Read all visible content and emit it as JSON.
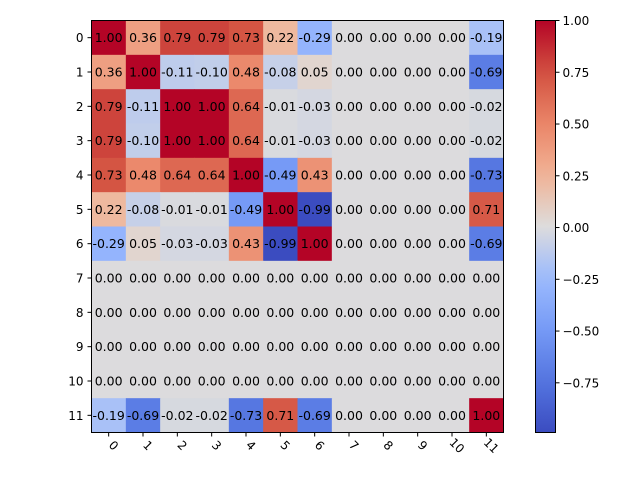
{
  "chart_data": {
    "type": "heatmap",
    "title": "",
    "xlabel": "",
    "ylabel": "",
    "x_categories": [
      "0",
      "1",
      "2",
      "3",
      "4",
      "5",
      "6",
      "7",
      "8",
      "9",
      "10",
      "11"
    ],
    "y_categories": [
      "0",
      "1",
      "2",
      "3",
      "4",
      "5",
      "6",
      "7",
      "8",
      "9",
      "10",
      "11"
    ],
    "values": [
      [
        1.0,
        0.36,
        0.79,
        0.79,
        0.73,
        0.22,
        -0.29,
        0.0,
        0.0,
        0.0,
        0.0,
        -0.19
      ],
      [
        0.36,
        1.0,
        -0.11,
        -0.1,
        0.48,
        -0.08,
        0.05,
        0.0,
        0.0,
        0.0,
        0.0,
        -0.69
      ],
      [
        0.79,
        -0.11,
        1.0,
        1.0,
        0.64,
        -0.01,
        -0.03,
        0.0,
        0.0,
        0.0,
        0.0,
        -0.02
      ],
      [
        0.79,
        -0.1,
        1.0,
        1.0,
        0.64,
        -0.01,
        -0.03,
        0.0,
        0.0,
        0.0,
        0.0,
        -0.02
      ],
      [
        0.73,
        0.48,
        0.64,
        0.64,
        1.0,
        -0.49,
        0.43,
        0.0,
        0.0,
        0.0,
        0.0,
        -0.73
      ],
      [
        0.22,
        -0.08,
        -0.01,
        -0.01,
        -0.49,
        1.0,
        -0.99,
        0.0,
        0.0,
        0.0,
        0.0,
        0.71
      ],
      [
        -0.29,
        0.05,
        -0.03,
        -0.03,
        0.43,
        -0.99,
        1.0,
        0.0,
        0.0,
        0.0,
        0.0,
        -0.69
      ],
      [
        0.0,
        0.0,
        0.0,
        0.0,
        0.0,
        0.0,
        0.0,
        0.0,
        0.0,
        0.0,
        0.0,
        0.0
      ],
      [
        0.0,
        0.0,
        0.0,
        0.0,
        0.0,
        0.0,
        0.0,
        0.0,
        0.0,
        0.0,
        0.0,
        0.0
      ],
      [
        0.0,
        0.0,
        0.0,
        0.0,
        0.0,
        0.0,
        0.0,
        0.0,
        0.0,
        0.0,
        0.0,
        0.0
      ],
      [
        0.0,
        0.0,
        0.0,
        0.0,
        0.0,
        0.0,
        0.0,
        0.0,
        0.0,
        0.0,
        0.0,
        0.0
      ],
      [
        -0.19,
        -0.69,
        -0.02,
        -0.02,
        -0.73,
        0.71,
        -0.69,
        0.0,
        0.0,
        0.0,
        0.0,
        1.0
      ]
    ],
    "value_format": "2 decimals",
    "colormap": "coolwarm",
    "color_range": [
      -0.99,
      1.0
    ],
    "colorbar_ticks": [
      "1.00",
      "0.75",
      "0.50",
      "0.25",
      "0.00",
      "−0.25",
      "−0.50",
      "−0.75"
    ],
    "colorbar_tick_values": [
      1.0,
      0.75,
      0.5,
      0.25,
      0.0,
      -0.25,
      -0.5,
      -0.75
    ],
    "x_tick_rotation_deg": 45,
    "grid": false
  }
}
